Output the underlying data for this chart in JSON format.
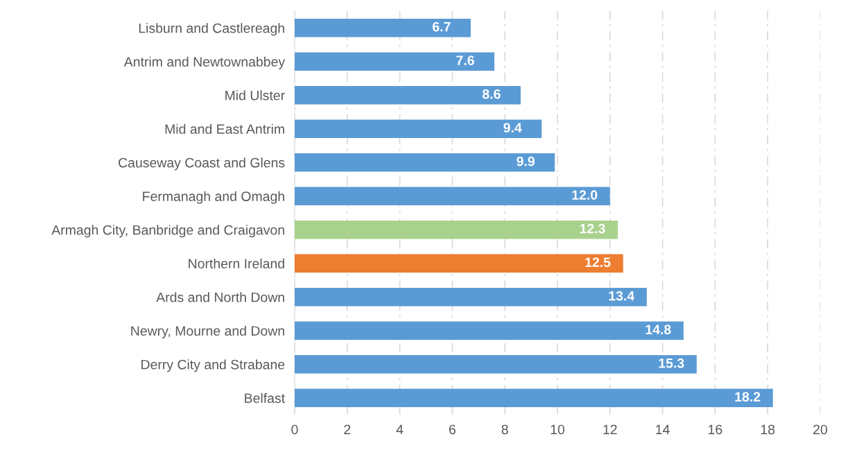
{
  "chart_data": {
    "type": "bar",
    "orientation": "horizontal",
    "categories": [
      "Lisburn and Castlereagh",
      "Antrim and Newtownabbey",
      "Mid Ulster",
      "Mid and East Antrim",
      "Causeway Coast and Glens",
      "Fermanagh and Omagh",
      "Armagh City, Banbridge and Craigavon",
      "Northern Ireland",
      "Ards and North Down",
      "Newry, Mourne and Down",
      "Derry City and Strabane",
      "Belfast"
    ],
    "values": [
      6.7,
      7.6,
      8.6,
      9.4,
      9.9,
      12.0,
      12.3,
      12.5,
      13.4,
      14.8,
      15.3,
      18.2
    ],
    "value_labels": [
      "6.7",
      "7.6",
      "8.6",
      "9.4",
      "9.9",
      "12.0",
      "12.3",
      "12.5",
      "13.4",
      "14.8",
      "15.3",
      "18.2"
    ],
    "colors": [
      "#5b9bd5",
      "#5b9bd5",
      "#5b9bd5",
      "#5b9bd5",
      "#5b9bd5",
      "#5b9bd5",
      "#a9d18e",
      "#ed7d31",
      "#5b9bd5",
      "#5b9bd5",
      "#5b9bd5",
      "#5b9bd5"
    ],
    "xlim": [
      0,
      20
    ],
    "xticks": [
      0,
      2,
      4,
      6,
      8,
      10,
      12,
      14,
      16,
      18,
      20
    ],
    "grid": "x"
  }
}
